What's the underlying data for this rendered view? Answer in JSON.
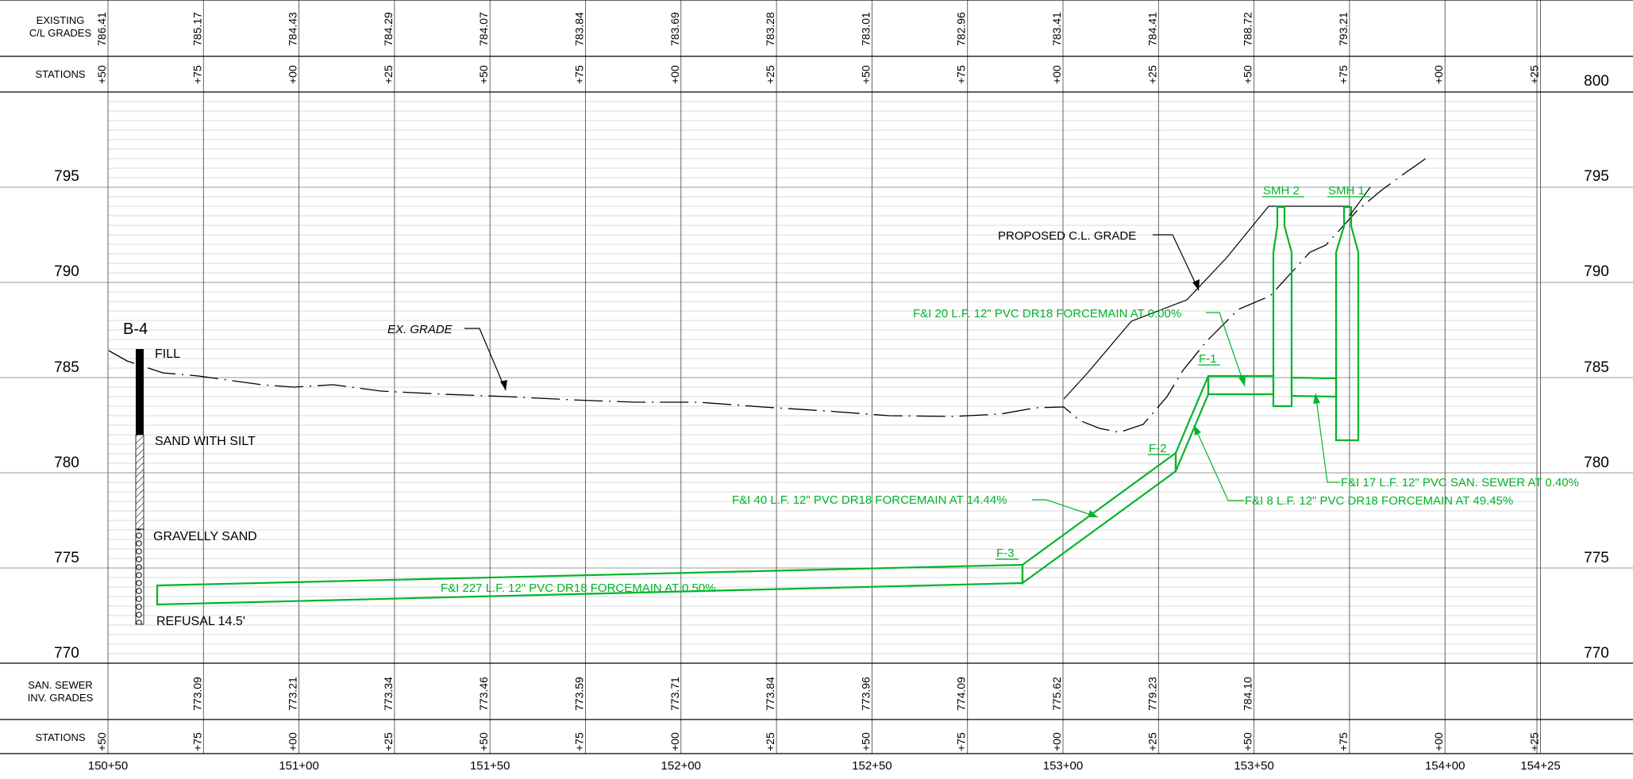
{
  "header": {
    "existing_label_1": "EXISTING",
    "existing_label_2": "C/L GRADES",
    "stations_label": "STATIONS"
  },
  "footer": {
    "inv_label_1": "SAN. SEWER",
    "inv_label_2": "INV. GRADES",
    "stations_label": "STATIONS"
  },
  "existing_grades": [
    "786.41",
    "785.17",
    "784.43",
    "784.29",
    "784.07",
    "783.84",
    "783.69",
    "783.28",
    "783.01",
    "782.96",
    "783.41",
    "784.41",
    "788.72",
    "793.21",
    "",
    ""
  ],
  "station_ticks": [
    "+50",
    "+75",
    "+00",
    "+25",
    "+50",
    "+75",
    "+00",
    "+25",
    "+50",
    "+75",
    "+00",
    "+25",
    "+50",
    "+75",
    "+00",
    "+25"
  ],
  "inv_grades": [
    "",
    "773.09",
    "773.21",
    "773.34",
    "773.46",
    "773.59",
    "773.71",
    "773.84",
    "773.96",
    "774.09",
    "775.62",
    "779.23",
    "784.10",
    "",
    "",
    ""
  ],
  "bottom_stations": [
    {
      "i": 0,
      "label": "150+50"
    },
    {
      "i": 2,
      "label": "151+00"
    },
    {
      "i": 4,
      "label": "151+50"
    },
    {
      "i": 6,
      "label": "152+00"
    },
    {
      "i": 8,
      "label": "152+50"
    },
    {
      "i": 10,
      "label": "153+00"
    },
    {
      "i": 12,
      "label": "153+50"
    },
    {
      "i": 14,
      "label": "154+00"
    },
    {
      "i": 15,
      "label": "154+25"
    }
  ],
  "elevations": [
    "800",
    "795",
    "790",
    "785",
    "780",
    "775",
    "770"
  ],
  "boring": {
    "name": "B-4",
    "layers": [
      "FILL",
      "SAND WITH SILT",
      "GRAVELLY SAND",
      "REFUSAL 14.5'"
    ]
  },
  "annotations": {
    "ex_grade": "EX. GRADE",
    "proposed_grade": "PROPOSED C.L. GRADE",
    "smh2": "SMH 2",
    "smh1": "SMH 1",
    "f1": "F-1",
    "f2": "F-2",
    "f3": "F-3",
    "pipe_20": "F&I 20 L.F. 12\" PVC DR18 FORCEMAIN AT 0.00%",
    "pipe_40": "F&I 40 L.F. 12\" PVC DR18 FORCEMAIN AT 14.44%",
    "pipe_227": "F&I 227 L.F. 12\" PVC DR18 FORCEMAIN AT 0.50%",
    "pipe_17": "F&I 17 L.F. 12\" PVC SAN. SEWER AT 0.40%",
    "pipe_8": "F&I 8 L.F. 12\" PVC DR18 FORCEMAIN AT 49.45%"
  },
  "colors": {
    "pipe": "#00b52a",
    "ink": "#000000",
    "grid": "#9a9a9a",
    "minor_grid": "#cccccc"
  }
}
